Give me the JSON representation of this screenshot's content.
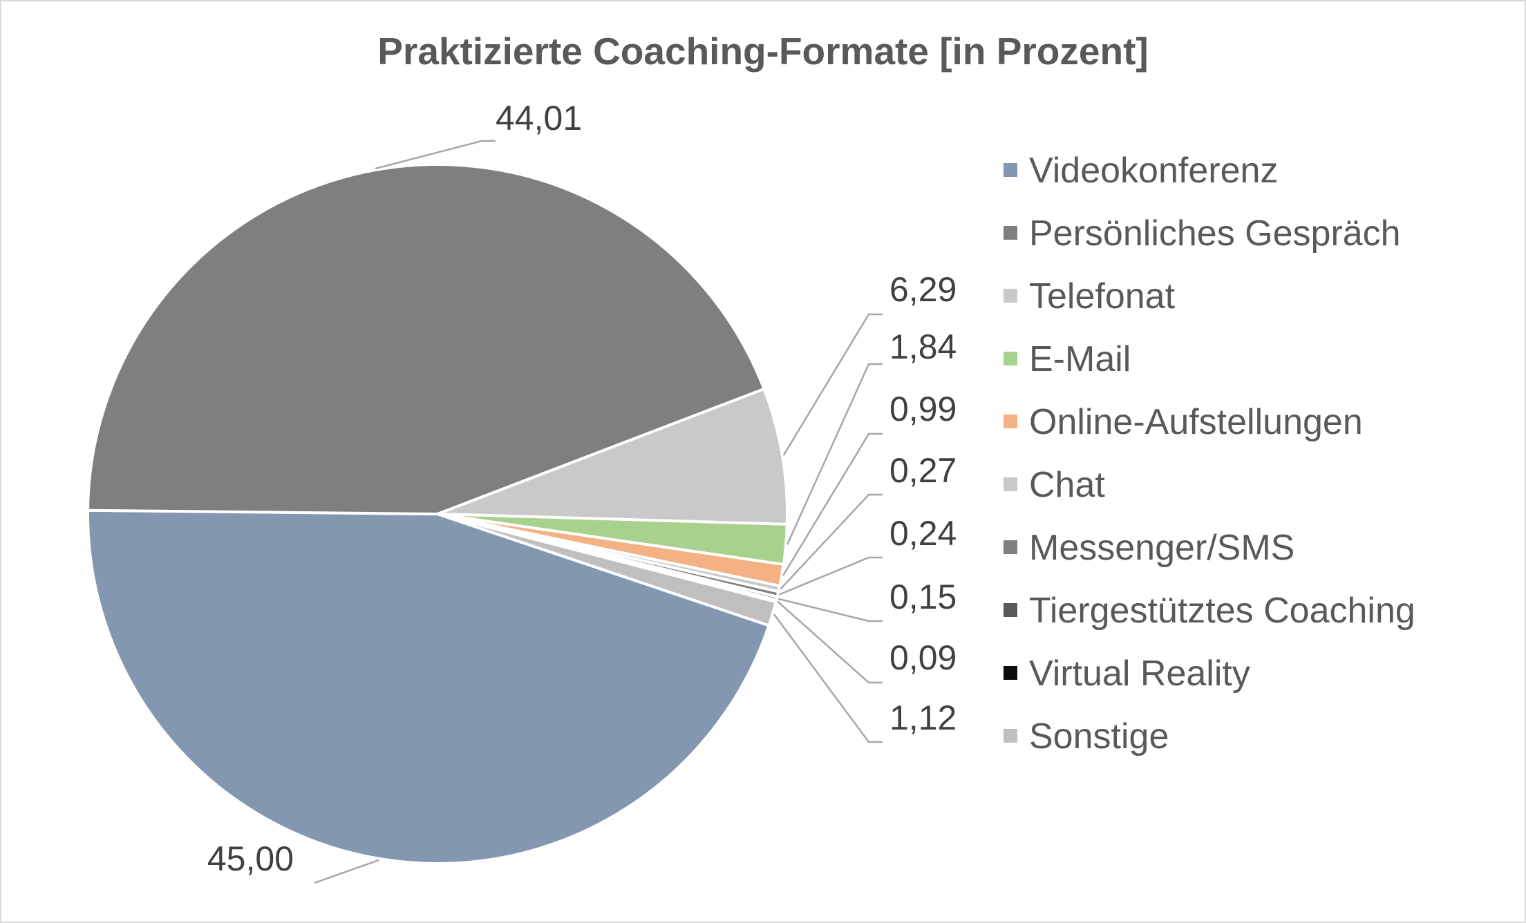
{
  "chart_data": {
    "type": "pie",
    "title": "Praktizierte Coaching-Formate [in Prozent]",
    "legend_position": "right",
    "slices": [
      {
        "name": "Videokonferenz",
        "value": 45.0,
        "label": "45,00",
        "color": "#8497b0"
      },
      {
        "name": "Persönliches Gespräch",
        "value": 44.01,
        "label": "44,01",
        "color": "#7f7f7f"
      },
      {
        "name": "Telefonat",
        "value": 6.29,
        "label": "6,29",
        "color": "#c9c9c9"
      },
      {
        "name": "E-Mail",
        "value": 1.84,
        "label": "1,84",
        "color": "#a9d18e"
      },
      {
        "name": "Online-Aufstellungen",
        "value": 0.99,
        "label": "0,99",
        "color": "#f4b183"
      },
      {
        "name": "Chat",
        "value": 0.27,
        "label": "0,27",
        "color": "#c9c9c9"
      },
      {
        "name": "Messenger/SMS",
        "value": 0.24,
        "label": "0,24",
        "color": "#7f7f7f"
      },
      {
        "name": "Tiergestütztes Coaching",
        "value": 0.15,
        "label": "0,15",
        "color": "#595959"
      },
      {
        "name": "Virtual Reality",
        "value": 0.09,
        "label": "0,09",
        "color": "#0d0d0d"
      },
      {
        "name": "Sonstige",
        "value": 1.12,
        "label": "1,12",
        "color": "#bfbfbf"
      }
    ]
  }
}
